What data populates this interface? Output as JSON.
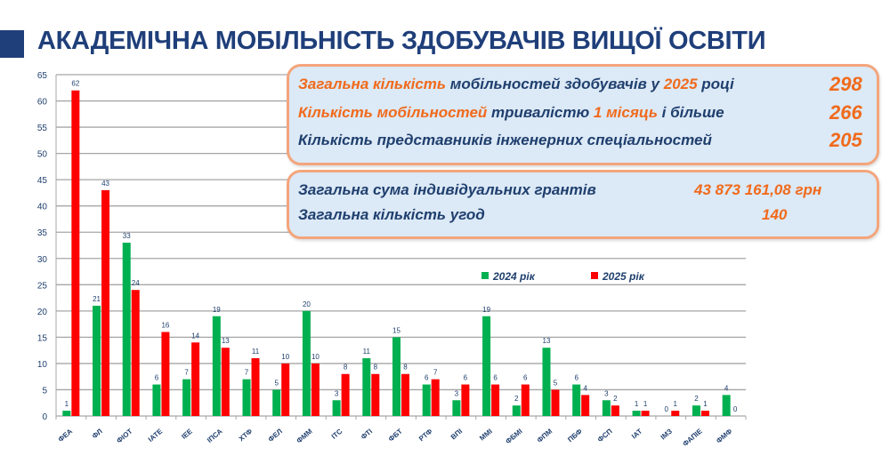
{
  "page": {
    "title": "АКАДЕМІЧНА МОБІЛЬНІСТЬ ЗДОБУВАЧІВ ВИЩОЇ ОСВІТИ",
    "accent_color": "#1f3f7a",
    "highlight_color": "#f06a1c"
  },
  "summary": {
    "row1": {
      "p1": "Загальна кількість",
      "p2": " мобільностей здобувачів  у ",
      "p3": "2025",
      "p4": " році",
      "value": "298"
    },
    "row2": {
      "p1": "Кількість мобільностей",
      "p2": " тривалістю ",
      "p3": "1 місяць",
      "p4": " і більше",
      "value": "266"
    },
    "row3": {
      "p1": "Кількість представників інженерних спеціальностей",
      "value": "205"
    }
  },
  "grants": {
    "row1": {
      "label": "Загальна сума індивідуальних грантів",
      "value": "43 873 161,08 грн"
    },
    "row2": {
      "label": "Загальна кількість угод",
      "value": "140"
    }
  },
  "chart_data": {
    "type": "bar",
    "categories": [
      "ФЕА",
      "ФЛ",
      "ФІОТ",
      "ІАТЕ",
      "ІЕЕ",
      "ІПСА",
      "ХТФ",
      "ФЕЛ",
      "ФММ",
      "ІТС",
      "ФТІ",
      "ФБТ",
      "РТФ",
      "ВПІ",
      "ММІ",
      "ФБМІ",
      "ФПМ",
      "ПБФ",
      "ФСП",
      "ІАТ",
      "ІМЗ",
      "ФАПІЕ",
      "ФМФ"
    ],
    "series": [
      {
        "name": "2024 рік",
        "color": "#00b050",
        "values": [
          1,
          21,
          33,
          6,
          7,
          19,
          7,
          5,
          20,
          3,
          11,
          15,
          6,
          3,
          19,
          2,
          13,
          6,
          3,
          1,
          0,
          2,
          4
        ]
      },
      {
        "name": "2025 рік",
        "color": "#ff0000",
        "values": [
          62,
          43,
          24,
          16,
          14,
          13,
          11,
          10,
          10,
          8,
          8,
          8,
          7,
          6,
          6,
          6,
          5,
          4,
          2,
          1,
          1,
          1,
          0
        ]
      }
    ],
    "ylim": [
      0,
      65
    ],
    "yticks": [
      0,
      5,
      10,
      15,
      20,
      25,
      30,
      35,
      40,
      45,
      50,
      55,
      60,
      65
    ],
    "grid": true,
    "legend": "top-center",
    "data_labels": true
  }
}
